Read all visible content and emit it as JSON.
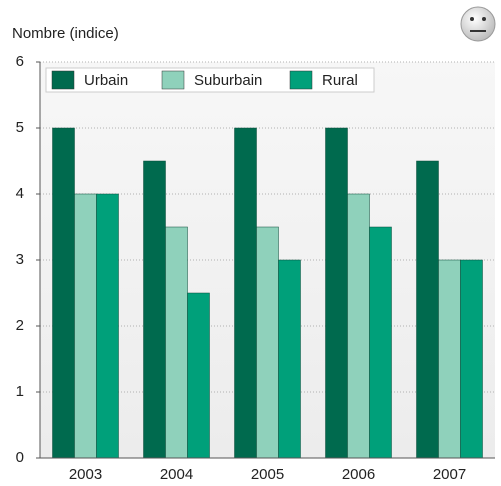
{
  "chart_data": {
    "type": "bar",
    "y_label": "Nombre (indice)",
    "categories": [
      "2003",
      "2004",
      "2005",
      "2006",
      "2007"
    ],
    "series": [
      {
        "name": "Urbain",
        "color": "#006a4e",
        "values": [
          5,
          4.5,
          5,
          5,
          4.5
        ]
      },
      {
        "name": "Suburbain",
        "color": "#8fd1bb",
        "values": [
          4,
          3.5,
          3.5,
          4,
          3
        ]
      },
      {
        "name": "Rural",
        "color": "#00a07a",
        "values": [
          4,
          2.5,
          3,
          3.5,
          3
        ]
      }
    ],
    "ylim": [
      0,
      6
    ],
    "yticks": [
      0,
      1,
      2,
      3,
      4,
      5,
      6
    ],
    "grid": true,
    "legend": "top-left"
  }
}
